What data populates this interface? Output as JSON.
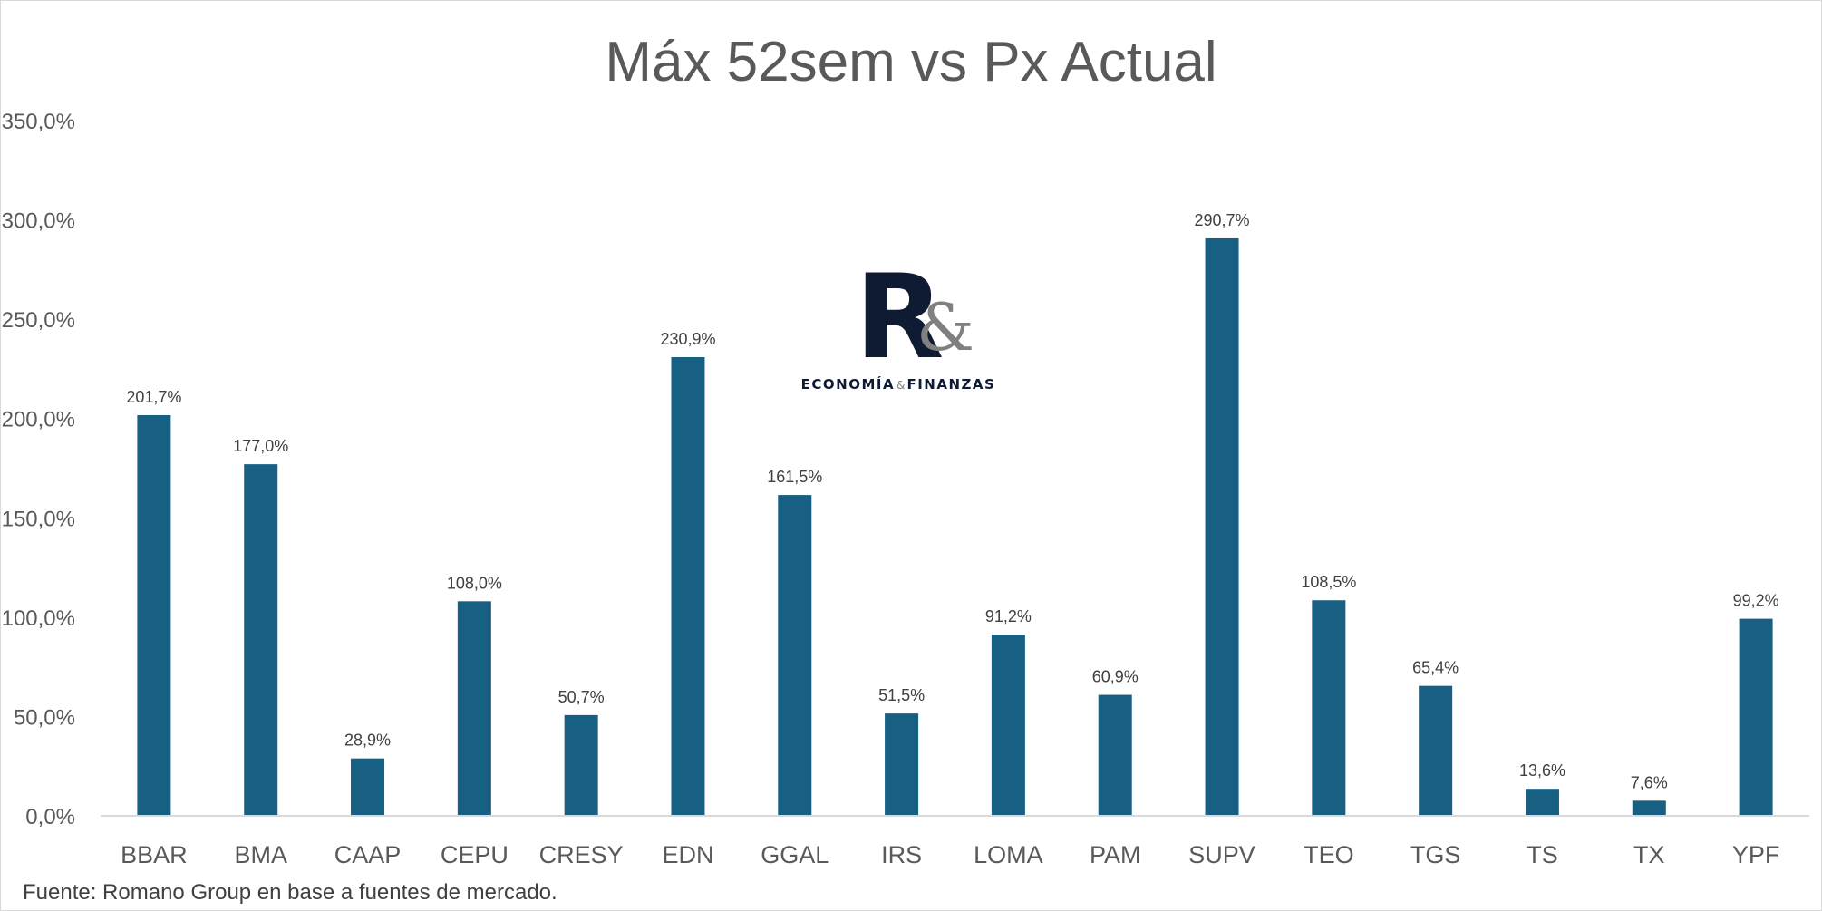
{
  "logo": {
    "mark_letter": "R",
    "mark_amp": "&",
    "subtitle_left": "ECONOMÍA",
    "subtitle_amp": "&",
    "subtitle_right": "FINANZAS"
  },
  "colors": {
    "bar": "#185f84",
    "text": "#595959",
    "axis": "#d9d9d9"
  },
  "chart_data": {
    "type": "bar",
    "title": "Máx 52sem vs Px Actual",
    "xlabel": "",
    "ylabel": "",
    "ylim": [
      0,
      350
    ],
    "yticks": [
      0,
      50,
      100,
      150,
      200,
      250,
      300,
      350
    ],
    "ytick_labels": [
      "0,0%",
      "50,0%",
      "100,0%",
      "150,0%",
      "200,0%",
      "250,0%",
      "300,0%",
      "350,0%"
    ],
    "grid": false,
    "legend": "none",
    "categories": [
      "BBAR",
      "BMA",
      "CAAP",
      "CEPU",
      "CRESY",
      "EDN",
      "GGAL",
      "IRS",
      "LOMA",
      "PAM",
      "SUPV",
      "TEO",
      "TGS",
      "TS",
      "TX",
      "YPF"
    ],
    "values": [
      201.7,
      177.0,
      28.9,
      108.0,
      50.7,
      230.9,
      161.5,
      51.5,
      91.2,
      60.9,
      290.7,
      108.5,
      65.4,
      13.6,
      7.6,
      99.2
    ],
    "data_labels": [
      "201,7%",
      "177,0%",
      "28,9%",
      "108,0%",
      "50,7%",
      "230,9%",
      "161,5%",
      "51,5%",
      "91,2%",
      "60,9%",
      "290,7%",
      "108,5%",
      "65,4%",
      "13,6%",
      "7,6%",
      "99,2%"
    ],
    "source_note": "Fuente: Romano Group en base a fuentes de mercado."
  }
}
